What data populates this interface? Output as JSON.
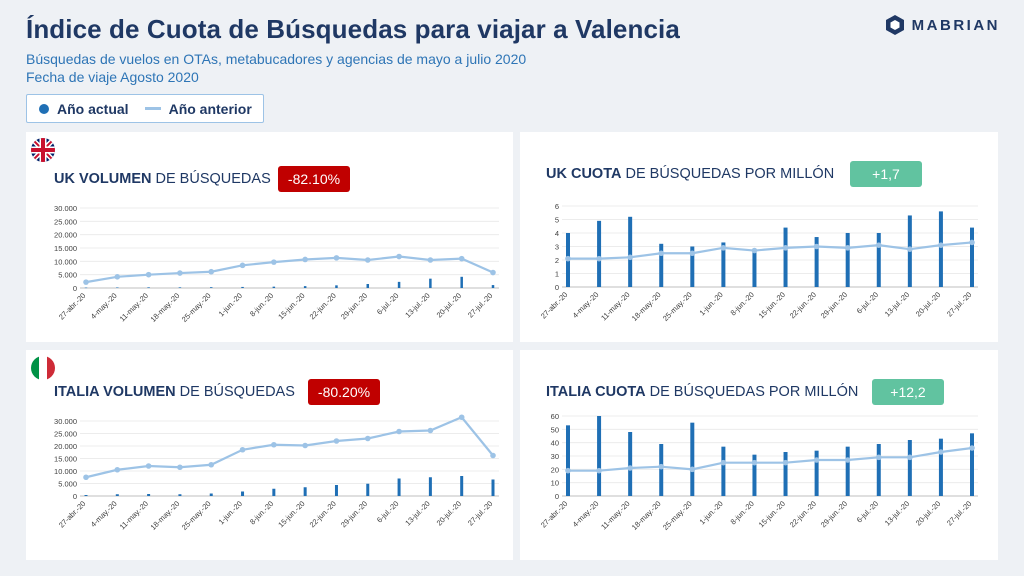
{
  "header": {
    "title": "Índice de Cuota de Búsquedas para viajar a Valencia",
    "subtitle1": "Búsquedas de vuelos en OTAs, metabucadores y agencias de mayo a julio 2020",
    "subtitle2": "Fecha de viaje Agosto 2020",
    "brand": "MABRIAN"
  },
  "legend": {
    "current": "Año actual",
    "previous": "Año anterior"
  },
  "colors": {
    "bar": "#1f6fb5",
    "line": "#9dc3e6",
    "negative": "#c00000",
    "positive": "#61c3a0",
    "text": "#1f3864"
  },
  "panels": {
    "uk_vol": {
      "title_bold": "UK VOLUMEN",
      "title_rest": " DE BÚSQUEDAS",
      "badge": "-82.10%"
    },
    "uk_share": {
      "title_bold": "UK CUOTA",
      "title_rest": "  DE BÚSQUEDAS POR MILLÓN",
      "badge": "+1,7"
    },
    "it_vol": {
      "title_bold": "ITALIA VOLUMEN",
      "title_rest": "  DE BÚSQUEDAS",
      "badge": "-80.20%"
    },
    "it_share": {
      "title_bold": "ITALIA CUOTA",
      "title_rest": "  DE BÚSQUEDAS POR MILLÓN",
      "badge": "+12,2"
    }
  },
  "chart_data": [
    {
      "id": "uk_vol",
      "type": "bar",
      "categories": [
        "27-abr.-20",
        "4-may.-20",
        "11-may.-20",
        "18-may.-20",
        "25-may.-20",
        "1-jun.-20",
        "8-jun.-20",
        "15-jun.-20",
        "22-jun.-20",
        "29-jun.-20",
        "6-jul.-20",
        "13-jul.-20",
        "20-jul.-20",
        "27-jul.-20"
      ],
      "yticks": [
        "0",
        "5.000",
        "10.000",
        "15.000",
        "20.000",
        "25.000",
        "30.000"
      ],
      "ylim": [
        0,
        30000
      ],
      "series": [
        {
          "name": "Año actual",
          "type": "bar",
          "values": [
            150,
            200,
            250,
            250,
            300,
            400,
            500,
            700,
            1000,
            1500,
            2300,
            3500,
            4200,
            1100
          ]
        },
        {
          "name": "Año anterior",
          "type": "line",
          "values": [
            2200,
            4200,
            5000,
            5600,
            6100,
            8500,
            9700,
            10700,
            11300,
            10500,
            11800,
            10500,
            11000,
            5800
          ]
        }
      ]
    },
    {
      "id": "uk_share",
      "type": "bar",
      "categories": [
        "27-abr.-20",
        "4-may.-20",
        "11-may.-20",
        "18-may.-20",
        "25-may.-20",
        "1-jun.-20",
        "8-jun.-20",
        "15-jun.-20",
        "22-jun.-20",
        "29-jun.-20",
        "6-jul.-20",
        "13-jul.-20",
        "20-jul.-20",
        "27-jul.-20"
      ],
      "yticks": [
        "0",
        "1",
        "2",
        "3",
        "4",
        "5",
        "6"
      ],
      "ylim": [
        0,
        6
      ],
      "series": [
        {
          "name": "Año actual",
          "type": "bar",
          "values": [
            4.0,
            4.9,
            5.2,
            3.2,
            3.0,
            3.3,
            2.8,
            4.4,
            3.7,
            4.0,
            4.0,
            5.3,
            5.6,
            4.4
          ]
        },
        {
          "name": "Año anterior",
          "type": "line",
          "values": [
            2.1,
            2.1,
            2.2,
            2.5,
            2.5,
            2.9,
            2.7,
            2.9,
            3.0,
            2.9,
            3.1,
            2.8,
            3.1,
            3.3
          ]
        }
      ]
    },
    {
      "id": "it_vol",
      "type": "bar",
      "categories": [
        "27-abr.-20",
        "4-may.-20",
        "11-may.-20",
        "18-may.-20",
        "25-may.-20",
        "1-jun.-20",
        "8-jun.-20",
        "15-jun.-20",
        "22-jun.-20",
        "29-jun.-20",
        "6-jul.-20",
        "13-jul.-20",
        "20-jul.-20",
        "27-jul.-20"
      ],
      "yticks": [
        "0",
        "5.000",
        "10.000",
        "15.000",
        "20.000",
        "25.000",
        "30.000"
      ],
      "ylim": [
        0,
        32000
      ],
      "series": [
        {
          "name": "Año actual",
          "type": "bar",
          "values": [
            400,
            700,
            800,
            700,
            1000,
            1800,
            2900,
            3500,
            4400,
            4900,
            7000,
            7500,
            8000,
            6600
          ]
        },
        {
          "name": "Año anterior",
          "type": "line",
          "values": [
            7500,
            10500,
            12000,
            11500,
            12500,
            18500,
            20500,
            20200,
            22000,
            23000,
            25800,
            26200,
            31500,
            16200
          ]
        }
      ]
    },
    {
      "id": "it_share",
      "type": "bar",
      "categories": [
        "27-abr.-20",
        "4-may.-20",
        "11-may.-20",
        "18-may.-20",
        "25-may.-20",
        "1-jun.-20",
        "8-jun.-20",
        "15-jun.-20",
        "22-jun.-20",
        "29-jun.-20",
        "6-jul.-20",
        "13-jul.-20",
        "20-jul.-20",
        "27-jul.-20"
      ],
      "yticks": [
        "0",
        "10",
        "20",
        "30",
        "40",
        "50",
        "60"
      ],
      "ylim": [
        0,
        60
      ],
      "series": [
        {
          "name": "Año actual",
          "type": "bar",
          "values": [
            53,
            60,
            48,
            39,
            55,
            37,
            31,
            33,
            34,
            37,
            39,
            42,
            43,
            47
          ]
        },
        {
          "name": "Año anterior",
          "type": "line",
          "values": [
            19,
            19,
            21,
            22,
            20,
            25,
            25,
            25,
            27,
            27,
            29,
            29,
            33,
            36
          ]
        }
      ]
    }
  ]
}
